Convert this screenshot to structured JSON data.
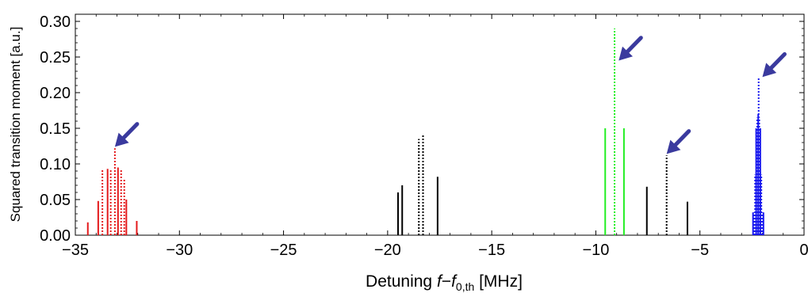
{
  "chart_data": {
    "type": "bar",
    "style": "stick spectrum (vertical lines)",
    "xlabel": {
      "prefix": "Detuning ",
      "var_f": "f",
      "minus": "−",
      "var_f0": "f",
      "subscript": "0,th",
      "suffix": " [MHz]"
    },
    "ylabel": "Squared transition moment [a.u.]",
    "xlim": [
      -35,
      0
    ],
    "ylim": [
      0,
      0.31
    ],
    "x_ticks": [
      -35,
      -30,
      -25,
      -20,
      -15,
      -10,
      -5,
      0
    ],
    "x_tick_labels": [
      "−35",
      "−30",
      "−25",
      "−20",
      "−15",
      "−10",
      "−5",
      "0"
    ],
    "y_ticks": [
      0.0,
      0.05,
      0.1,
      0.15,
      0.2,
      0.25,
      0.3
    ],
    "y_tick_labels": [
      "0.00",
      "0.05",
      "0.10",
      "0.15",
      "0.20",
      "0.25",
      "0.30"
    ],
    "grid": false,
    "colors": {
      "red": "#e41a1c",
      "black": "#000000",
      "green": "#22ee22",
      "blue": "#1a1aee",
      "arrow": "#3a3a9e"
    },
    "series": [
      {
        "color": "#e41a1c",
        "lines": [
          {
            "x": -34.4,
            "y": 0.018,
            "style": "solid"
          },
          {
            "x": -33.9,
            "y": 0.048,
            "style": "solid"
          },
          {
            "x": -33.7,
            "y": 0.093,
            "style": "dotted"
          },
          {
            "x": -33.45,
            "y": 0.093,
            "style": "solid"
          },
          {
            "x": -33.3,
            "y": 0.093,
            "style": "dotted"
          },
          {
            "x": -33.1,
            "y": 0.122,
            "style": "dotted"
          },
          {
            "x": -32.95,
            "y": 0.095,
            "style": "solid"
          },
          {
            "x": -32.8,
            "y": 0.093,
            "style": "dotted"
          },
          {
            "x": -32.65,
            "y": 0.08,
            "style": "dotted"
          },
          {
            "x": -32.55,
            "y": 0.05,
            "style": "solid"
          },
          {
            "x": -32.05,
            "y": 0.02,
            "style": "solid"
          }
        ]
      },
      {
        "color": "#000000",
        "lines": [
          {
            "x": -19.5,
            "y": 0.06,
            "style": "solid"
          },
          {
            "x": -19.3,
            "y": 0.07,
            "style": "solid"
          },
          {
            "x": -18.5,
            "y": 0.135,
            "style": "dotted"
          },
          {
            "x": -18.3,
            "y": 0.142,
            "style": "dotted"
          },
          {
            "x": -17.6,
            "y": 0.082,
            "style": "solid"
          },
          {
            "x": -7.55,
            "y": 0.068,
            "style": "solid"
          },
          {
            "x": -6.6,
            "y": 0.112,
            "style": "dotted"
          },
          {
            "x": -5.6,
            "y": 0.047,
            "style": "solid"
          }
        ]
      },
      {
        "color": "#22ee22",
        "lines": [
          {
            "x": -9.55,
            "y": 0.15,
            "style": "solid"
          },
          {
            "x": -9.1,
            "y": 0.29,
            "style": "dotted"
          },
          {
            "x": -8.65,
            "y": 0.15,
            "style": "solid"
          }
        ]
      },
      {
        "color": "#1a1aee",
        "lines": [
          {
            "x": -2.45,
            "y": 0.032,
            "style": "solid"
          },
          {
            "x": -2.4,
            "y": 0.032,
            "style": "dotted"
          },
          {
            "x": -2.35,
            "y": 0.085,
            "style": "dotted"
          },
          {
            "x": -2.3,
            "y": 0.15,
            "style": "solid"
          },
          {
            "x": -2.25,
            "y": 0.165,
            "style": "dotted"
          },
          {
            "x": -2.2,
            "y": 0.17,
            "style": "solid"
          },
          {
            "x": -2.18,
            "y": 0.22,
            "style": "dotted"
          },
          {
            "x": -2.15,
            "y": 0.165,
            "style": "dotted"
          },
          {
            "x": -2.1,
            "y": 0.15,
            "style": "solid"
          },
          {
            "x": -2.05,
            "y": 0.085,
            "style": "dotted"
          },
          {
            "x": -2.0,
            "y": 0.032,
            "style": "dotted"
          },
          {
            "x": -1.95,
            "y": 0.032,
            "style": "solid"
          }
        ]
      }
    ],
    "annotations": [
      {
        "type": "arrow",
        "points_to": {
          "x": -33.1,
          "y": 0.124
        }
      },
      {
        "type": "arrow",
        "points_to": {
          "x": -8.9,
          "y": 0.245
        }
      },
      {
        "type": "arrow",
        "points_to": {
          "x": -6.6,
          "y": 0.114
        }
      },
      {
        "type": "arrow",
        "points_to": {
          "x": -2.0,
          "y": 0.222
        }
      }
    ]
  }
}
